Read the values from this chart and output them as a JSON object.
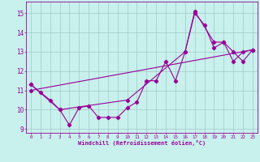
{
  "xlabel": "Windchill (Refroidissement éolien,°C)",
  "xlim": [
    -0.5,
    23.5
  ],
  "ylim": [
    8.8,
    15.6
  ],
  "yticks": [
    9,
    10,
    11,
    12,
    13,
    14,
    15
  ],
  "xticks": [
    0,
    1,
    2,
    3,
    4,
    5,
    6,
    7,
    8,
    9,
    10,
    11,
    12,
    13,
    14,
    15,
    16,
    17,
    18,
    19,
    20,
    21,
    22,
    23
  ],
  "background_color": "#c8f0ec",
  "line_color": "#990099",
  "grid_color": "#a0c8c4",
  "series1_x": [
    0,
    1,
    2,
    3,
    4,
    5,
    6,
    7,
    8,
    9,
    10,
    11,
    12,
    13,
    14,
    15,
    16,
    17,
    18,
    19,
    20,
    21,
    22,
    23
  ],
  "series1_y": [
    11.3,
    10.9,
    10.5,
    10.0,
    9.2,
    10.1,
    10.2,
    9.6,
    9.6,
    9.6,
    10.1,
    10.4,
    11.5,
    11.5,
    12.5,
    11.5,
    13.0,
    15.0,
    14.4,
    13.2,
    13.5,
    12.5,
    13.0,
    13.1
  ],
  "series2_x": [
    0,
    3,
    10,
    16,
    17,
    19,
    20,
    21,
    22,
    23
  ],
  "series2_y": [
    11.3,
    10.0,
    10.5,
    13.0,
    15.1,
    13.5,
    13.5,
    13.0,
    12.5,
    13.1
  ],
  "series3_x": [
    0,
    23
  ],
  "series3_y": [
    11.0,
    13.1
  ]
}
